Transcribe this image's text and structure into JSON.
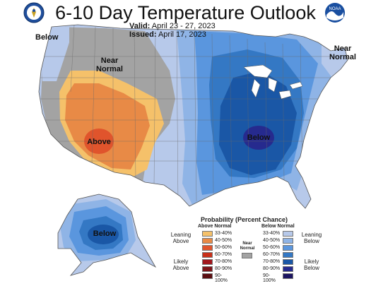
{
  "header": {
    "title": "6-10 Day Temperature Outlook",
    "valid_label": "Valid:",
    "valid_value": "April 23 - 27, 2023",
    "issued_label": "Issued:",
    "issued_value": "April 17, 2023"
  },
  "logos": {
    "left": "department-of-commerce-seal",
    "right": "noaa-logo",
    "right_text": "NOAA"
  },
  "map_labels": {
    "below_west": "Below",
    "near_normal_west": "Near\nNormal",
    "above_sw": "Above",
    "below_east": "Below",
    "near_normal_ne": "Near\nNormal",
    "below_alaska": "Below"
  },
  "colors": {
    "above_33_40": "#f5c16a",
    "above_40_50": "#e88a46",
    "above_50_60": "#e0542c",
    "above_60_70": "#c8301a",
    "above_70_80": "#a1161c",
    "above_80_90": "#7d1418",
    "above_90_100": "#5a0d10",
    "near_normal": "#a3a3a3",
    "below_33_40": "#b7c9ea",
    "below_40_50": "#8fb4e6",
    "below_50_60": "#5a96de",
    "below_60_70": "#3478c4",
    "below_70_80": "#1a57a6",
    "below_80_90": "#262a8e",
    "below_90_100": "#1b1461"
  },
  "legend": {
    "title": "Probability (Percent Chance)",
    "above_header": "Above Normal",
    "below_header": "Below Normal",
    "near_normal_label": "Near\nNormal",
    "leaning_above": "Leaning\nAbove",
    "likely_above": "Likely\nAbove",
    "leaning_below": "Leaning\nBelow",
    "likely_below": "Likely\nBelow",
    "above_ranges": [
      "33-40%",
      "40-50%",
      "50-60%",
      "60-70%",
      "70-80%",
      "80-90%",
      "90-100%"
    ],
    "below_ranges": [
      "33-40%",
      "40-50%",
      "50-60%",
      "60-70%",
      "70-80%",
      "80-90%",
      "90-100%"
    ]
  }
}
